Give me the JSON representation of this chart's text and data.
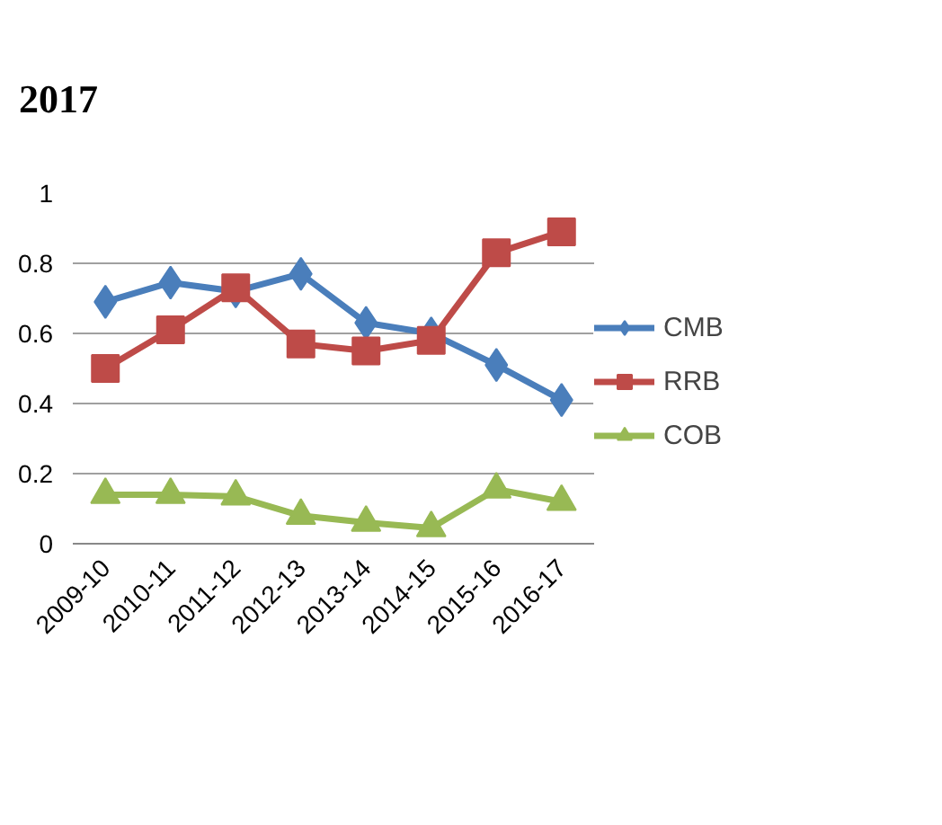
{
  "chart_data": {
    "type": "line",
    "title": "2017",
    "categories": [
      "2009-10",
      "2010-11",
      "2011-12",
      "2012-13",
      "2013-14",
      "2014-15",
      "2015-16",
      "2016-17"
    ],
    "series": [
      {
        "name": "CMB",
        "color": "#4a7ebb",
        "marker": "diamond",
        "values": [
          0.69,
          0.745,
          0.72,
          0.77,
          0.63,
          0.6,
          0.51,
          0.41
        ]
      },
      {
        "name": "RRB",
        "color": "#be4b48",
        "marker": "square",
        "values": [
          0.5,
          0.61,
          0.73,
          0.57,
          0.55,
          0.58,
          0.83,
          0.89
        ]
      },
      {
        "name": "COB",
        "color": "#98b954",
        "marker": "triangle",
        "values": [
          0.14,
          0.14,
          0.135,
          0.08,
          0.06,
          0.045,
          0.155,
          0.12
        ]
      }
    ],
    "ylim": [
      0,
      1
    ],
    "yticks": [
      0,
      {
        "value": 0.2,
        "label": "0.2"
      },
      {
        "value": 0.4,
        "label": "0.4"
      },
      {
        "value": 0.6,
        "label": "0.6"
      },
      {
        "value": 0.8,
        "label": "0.8"
      },
      1
    ],
    "grid": "y",
    "legend": "right",
    "line_style": "solid"
  }
}
